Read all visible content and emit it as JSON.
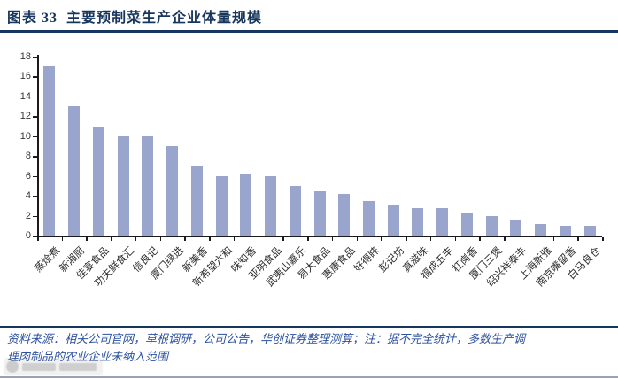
{
  "title": "图表 33  主要预制菜生产企业体量规模",
  "chart_data": {
    "type": "bar",
    "title": "主要预制菜生产企业体量规模",
    "categories": [
      "蒸烩煮",
      "新湘厨",
      "佳宴食品",
      "功夫鲜食汇",
      "信良记",
      "厦门绿进",
      "新美香",
      "新希望六和",
      "味知香",
      "亚明食品",
      "武夷山嘉乐",
      "易大食品",
      "惠康食品",
      "好得睐",
      "彭记坊",
      "真滋味",
      "福成五丰",
      "杠岗香",
      "厦门三煲",
      "绍兴祥泰丰",
      "上海新雅",
      "南京嘴留香",
      "白马良仓"
    ],
    "values": [
      17,
      13,
      11,
      10,
      10,
      9,
      7,
      6,
      6.2,
      6,
      5,
      4.5,
      4.2,
      3.5,
      3,
      2.8,
      2.8,
      2.2,
      2,
      1.5,
      1.2,
      1,
      1
    ],
    "xlabel": "",
    "ylabel": "",
    "ylim": [
      0,
      18
    ],
    "yticks": [
      0,
      2,
      4,
      6,
      8,
      10,
      12,
      14,
      16,
      18
    ],
    "grid": "off",
    "legend": "none",
    "bar_color": "#9AA5CE"
  },
  "footer": {
    "line1": "资料来源：相关公司官网，草根调研，公司公告，华创证券整理测算；注：据不完全统计，多数生产调",
    "line2": "理肉制品的农业企业未纳入范围"
  },
  "colors": {
    "accent_navy": "#17365D",
    "footer_blue": "#2B50A1",
    "axis_black": "#1a1a1a"
  }
}
